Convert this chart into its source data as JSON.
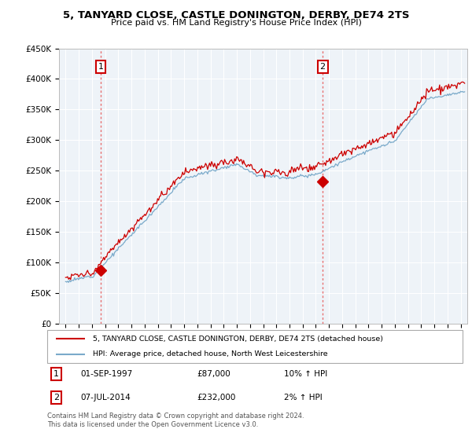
{
  "title": "5, TANYARD CLOSE, CASTLE DONINGTON, DERBY, DE74 2TS",
  "subtitle": "Price paid vs. HM Land Registry's House Price Index (HPI)",
  "ylim": [
    0,
    450000
  ],
  "xlim_start": 1994.5,
  "xlim_end": 2025.5,
  "sale1": {
    "date_num": 1997.67,
    "price": 87000,
    "label": "1"
  },
  "sale2": {
    "date_num": 2014.52,
    "price": 232000,
    "label": "2"
  },
  "legend_line1": "5, TANYARD CLOSE, CASTLE DONINGTON, DERBY, DE74 2TS (detached house)",
  "legend_line2": "HPI: Average price, detached house, North West Leicestershire",
  "footer": "Contains HM Land Registry data © Crown copyright and database right 2024.\nThis data is licensed under the Open Government Licence v3.0.",
  "color_red": "#cc0000",
  "color_blue": "#7aaaca",
  "color_dashed": "#e87070",
  "plot_bg": "#eef3f8",
  "grid_color": "#ffffff"
}
